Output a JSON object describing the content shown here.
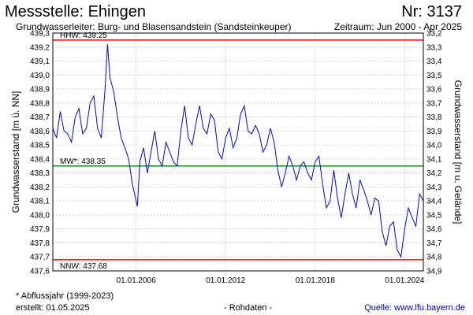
{
  "header": {
    "title": "Messstelle: Ehingen",
    "number": "Nr: 3137",
    "aquifer": "Grundwasserleiter:  Burg- und Blasensandstein (Sandsteinkeuper)",
    "period": "Zeitraum: Jun 2000 - Apr 2025"
  },
  "footer": {
    "note": "* Abflussjahr (1999-2023)",
    "created": "erstellt:  01.05.2025",
    "raw": "- Rohdaten -",
    "source": "Quelle: www.lfu.bayern.de"
  },
  "chart_data": {
    "type": "line",
    "xlabel": "",
    "ylabel": "Grundwasserstand [m ü. NN]",
    "ylabel_right": "Grundwasserstand [m u. Gelände]",
    "x_range": [
      "2000-06",
      "2025-04"
    ],
    "x_ticks": [
      "01.01.2006",
      "01.01.2012",
      "01.01.2018",
      "01.01.2024"
    ],
    "ylim": [
      437.6,
      439.3
    ],
    "y_ticks": [
      "437,6",
      "437,7",
      "437,8",
      "437,9",
      "438,0",
      "438,1",
      "438,2",
      "438,3",
      "438,4",
      "438,5",
      "438,6",
      "438,7",
      "438,8",
      "438,9",
      "439,0",
      "439,1",
      "439,2",
      "439,3"
    ],
    "ylim_right": [
      34.9,
      33.2
    ],
    "y_ticks_right": [
      "33,2",
      "33,3",
      "33,4",
      "33,5",
      "33,6",
      "33,7",
      "33,8",
      "33,9",
      "34,0",
      "34,1",
      "34,2",
      "34,3",
      "34,4",
      "34,5",
      "34,6",
      "34,7",
      "34,8",
      "34,9"
    ],
    "grid": true,
    "reference_lines": [
      {
        "label": "HHW: 439.25",
        "value": 439.25,
        "color": "#ff0000"
      },
      {
        "label": "MW*: 438.35",
        "value": 438.35,
        "color": "#008000"
      },
      {
        "label": "NNW: 437.68",
        "value": 437.68,
        "color": "#ff0000"
      }
    ],
    "series": [
      {
        "color": "#0000ff",
        "points": [
          [
            "2000-06",
            438.62
          ],
          [
            "2000-09",
            438.55
          ],
          [
            "2000-12",
            438.74
          ],
          [
            "2001-03",
            438.6
          ],
          [
            "2001-06",
            438.58
          ],
          [
            "2001-09",
            438.52
          ],
          [
            "2001-12",
            438.7
          ],
          [
            "2002-03",
            438.76
          ],
          [
            "2002-06",
            438.58
          ],
          [
            "2002-09",
            438.62
          ],
          [
            "2002-12",
            438.8
          ],
          [
            "2003-03",
            438.85
          ],
          [
            "2003-06",
            438.62
          ],
          [
            "2003-09",
            438.55
          ],
          [
            "2003-12",
            438.9
          ],
          [
            "2004-02",
            439.22
          ],
          [
            "2004-04",
            438.98
          ],
          [
            "2004-07",
            438.88
          ],
          [
            "2004-10",
            438.7
          ],
          [
            "2005-01",
            438.55
          ],
          [
            "2005-04",
            438.48
          ],
          [
            "2005-07",
            438.4
          ],
          [
            "2005-10",
            438.22
          ],
          [
            "2006-01",
            438.1
          ],
          [
            "2006-02",
            438.06
          ],
          [
            "2006-04",
            438.38
          ],
          [
            "2006-07",
            438.48
          ],
          [
            "2006-10",
            438.3
          ],
          [
            "2007-01",
            438.45
          ],
          [
            "2007-04",
            438.6
          ],
          [
            "2007-07",
            438.4
          ],
          [
            "2007-10",
            438.35
          ],
          [
            "2008-01",
            438.52
          ],
          [
            "2008-04",
            438.45
          ],
          [
            "2008-07",
            438.38
          ],
          [
            "2008-10",
            438.35
          ],
          [
            "2009-01",
            438.6
          ],
          [
            "2009-04",
            438.78
          ],
          [
            "2009-07",
            438.55
          ],
          [
            "2009-10",
            438.5
          ],
          [
            "2010-01",
            438.65
          ],
          [
            "2010-04",
            438.78
          ],
          [
            "2010-07",
            438.62
          ],
          [
            "2010-10",
            438.58
          ],
          [
            "2011-01",
            438.72
          ],
          [
            "2011-04",
            438.68
          ],
          [
            "2011-07",
            438.45
          ],
          [
            "2011-10",
            438.4
          ],
          [
            "2012-01",
            438.55
          ],
          [
            "2012-04",
            438.62
          ],
          [
            "2012-07",
            438.48
          ],
          [
            "2012-10",
            438.55
          ],
          [
            "2013-01",
            438.72
          ],
          [
            "2013-04",
            438.78
          ],
          [
            "2013-07",
            438.6
          ],
          [
            "2013-10",
            438.58
          ],
          [
            "2014-01",
            438.64
          ],
          [
            "2014-04",
            438.58
          ],
          [
            "2014-07",
            438.45
          ],
          [
            "2014-10",
            438.5
          ],
          [
            "2015-01",
            438.62
          ],
          [
            "2015-04",
            438.52
          ],
          [
            "2015-07",
            438.32
          ],
          [
            "2015-10",
            438.2
          ],
          [
            "2016-01",
            438.3
          ],
          [
            "2016-04",
            438.42
          ],
          [
            "2016-07",
            438.35
          ],
          [
            "2016-10",
            438.25
          ],
          [
            "2017-01",
            438.35
          ],
          [
            "2017-04",
            438.38
          ],
          [
            "2017-07",
            438.3
          ],
          [
            "2017-10",
            438.25
          ],
          [
            "2018-01",
            438.38
          ],
          [
            "2018-04",
            438.42
          ],
          [
            "2018-07",
            438.22
          ],
          [
            "2018-10",
            438.05
          ],
          [
            "2019-01",
            438.1
          ],
          [
            "2019-04",
            438.32
          ],
          [
            "2019-07",
            438.12
          ],
          [
            "2019-10",
            437.98
          ],
          [
            "2020-01",
            438.15
          ],
          [
            "2020-04",
            438.3
          ],
          [
            "2020-07",
            438.15
          ],
          [
            "2020-10",
            438.05
          ],
          [
            "2021-01",
            438.25
          ],
          [
            "2021-04",
            438.18
          ],
          [
            "2021-07",
            438.1
          ],
          [
            "2021-10",
            438.0
          ],
          [
            "2022-01",
            438.12
          ],
          [
            "2022-04",
            438.1
          ],
          [
            "2022-07",
            437.88
          ],
          [
            "2022-10",
            437.78
          ],
          [
            "2023-01",
            437.92
          ],
          [
            "2023-04",
            437.95
          ],
          [
            "2023-07",
            437.75
          ],
          [
            "2023-10",
            437.7
          ],
          [
            "2024-01",
            437.9
          ],
          [
            "2024-04",
            438.05
          ],
          [
            "2024-07",
            437.98
          ],
          [
            "2024-10",
            437.92
          ],
          [
            "2025-01",
            438.15
          ],
          [
            "2025-04",
            438.1
          ]
        ]
      }
    ]
  }
}
